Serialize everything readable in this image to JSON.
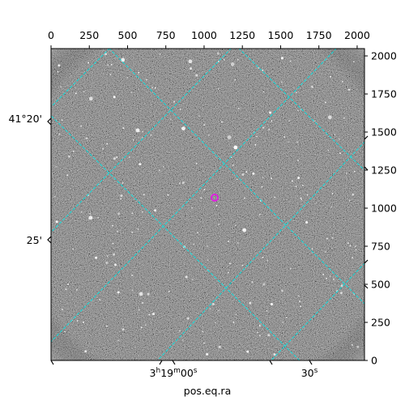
{
  "plot": {
    "xlabel": "pos.eq.ra",
    "ylabel": "",
    "pixel_x_ticks": [
      "0",
      "250",
      "500",
      "750",
      "1000",
      "1250",
      "1500",
      "1750",
      "2000"
    ],
    "pixel_y_ticks": [
      "0",
      "250",
      "500",
      "750",
      "1000",
      "1250",
      "1500",
      "1750",
      "2000"
    ],
    "ra_ticks": [
      {
        "h": "3",
        "m": "19",
        "s": "00",
        "suffix": "s"
      },
      {
        "s": "30",
        "suffix": "s"
      }
    ],
    "dec_ticks": [
      "41°20'",
      "25'"
    ],
    "overlay_grid_color": "#00e5e5",
    "marker_color": "#e020e0"
  }
}
